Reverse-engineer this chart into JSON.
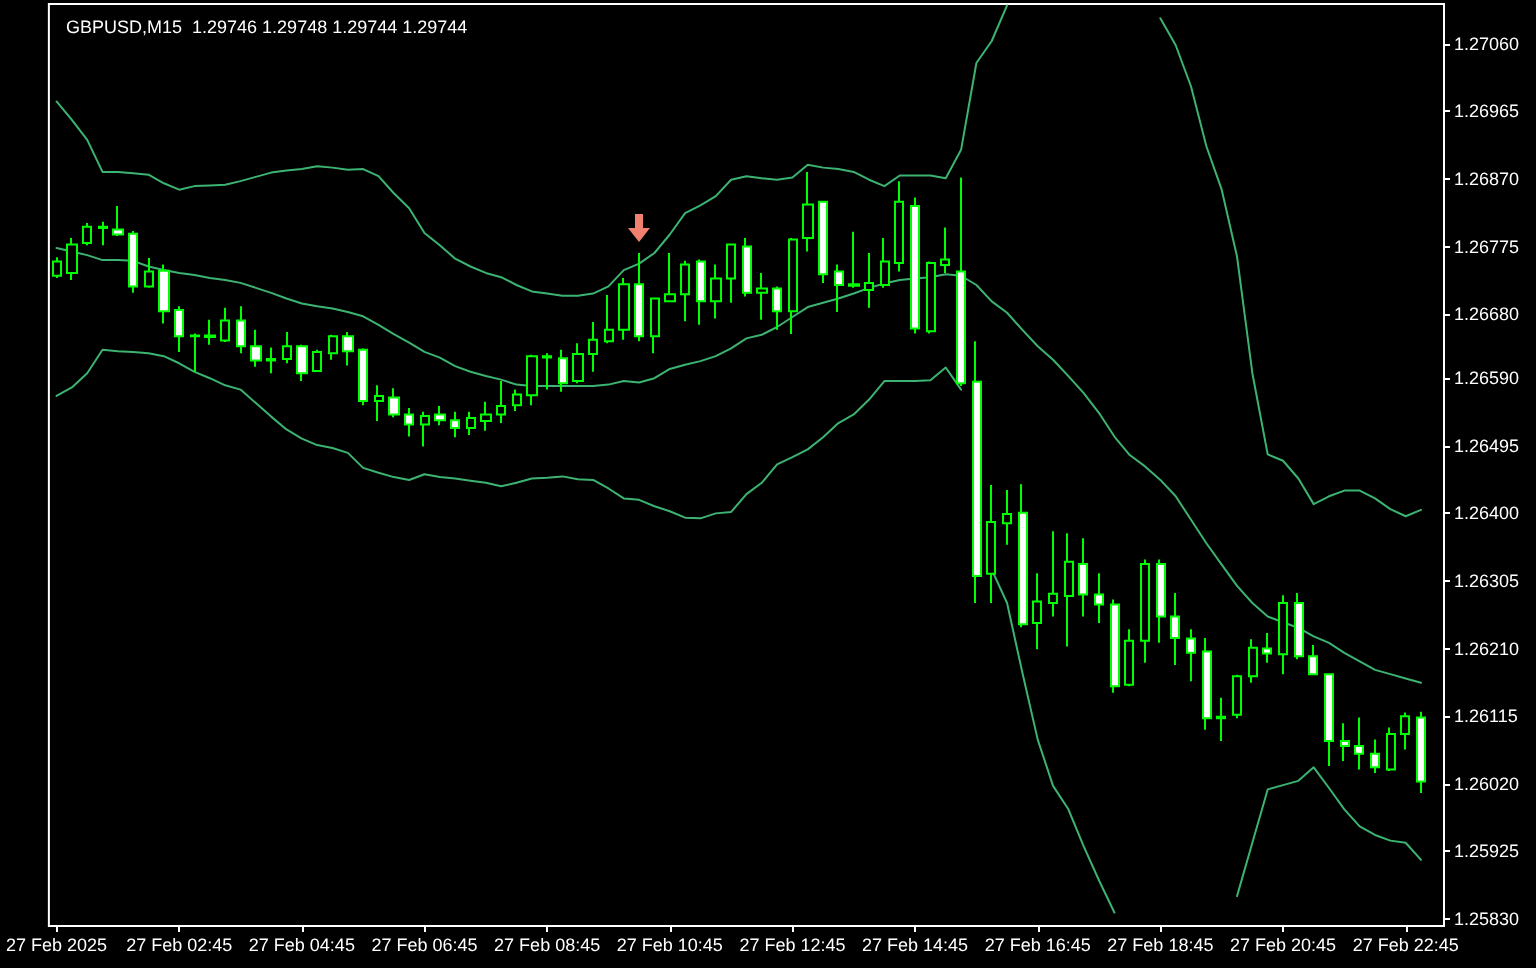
{
  "chart_data": {
    "type": "candlestick",
    "title": "GBPUSD,M15  1.29746 1.29748 1.29744 1.29744",
    "categories": [
      "27 Feb 2025",
      null,
      null,
      null,
      null,
      null,
      null,
      null,
      "27 Feb 02:45",
      null,
      null,
      null,
      null,
      null,
      null,
      null,
      "27 Feb 04:45",
      null,
      null,
      null,
      null,
      null,
      null,
      null,
      "27 Feb 06:45",
      null,
      null,
      null,
      null,
      null,
      null,
      null,
      "27 Feb 08:45",
      null,
      null,
      null,
      null,
      null,
      null,
      null,
      "27 Feb 10:45",
      null,
      null,
      null,
      null,
      null,
      null,
      null,
      "27 Feb 12:45",
      null,
      null,
      null,
      null,
      null,
      null,
      null,
      "27 Feb 14:45",
      null,
      null,
      null,
      null,
      null,
      null,
      null,
      "27 Feb 16:45",
      null,
      null,
      null,
      null,
      null,
      null,
      null,
      "27 Feb 18:45",
      null,
      null,
      null,
      null,
      null,
      null,
      null,
      "27 Feb 20:45",
      null,
      null,
      null,
      null,
      null,
      null,
      null,
      "27 Feb 22:45",
      null
    ],
    "color": "#00ff00",
    "ohlc": [
      [
        1.26734,
        1.2676,
        1.26731,
        1.26754
      ],
      [
        1.26738,
        1.26787,
        1.26728,
        1.26778
      ],
      [
        1.2678,
        1.26808,
        1.26777,
        1.26803
      ],
      [
        1.26801,
        1.2681,
        1.26777,
        1.26803
      ],
      [
        1.26799,
        1.26832,
        1.2679,
        1.26792
      ],
      [
        1.26793,
        1.26797,
        1.2671,
        1.26719
      ],
      [
        1.26719,
        1.26759,
        1.26717,
        1.2674
      ],
      [
        1.26741,
        1.2675,
        1.26667,
        1.26684
      ],
      [
        1.26686,
        1.26691,
        1.26627,
        1.26649
      ],
      [
        1.26649,
        1.26653,
        1.26599,
        1.2665
      ],
      [
        1.2665,
        1.26672,
        1.26637,
        1.26648
      ],
      [
        1.26643,
        1.26689,
        1.26641,
        1.26671
      ],
      [
        1.26671,
        1.26691,
        1.26625,
        1.26635
      ],
      [
        1.26635,
        1.26658,
        1.26606,
        1.26615
      ],
      [
        1.26615,
        1.26633,
        1.26597,
        1.26617
      ],
      [
        1.26617,
        1.26655,
        1.26611,
        1.26635
      ],
      [
        1.26635,
        1.26637,
        1.26586,
        1.26597
      ],
      [
        1.266,
        1.2663,
        1.26599,
        1.26627
      ],
      [
        1.26625,
        1.26651,
        1.26616,
        1.26649
      ],
      [
        1.26649,
        1.26655,
        1.26608,
        1.26628
      ],
      [
        1.2663,
        1.26632,
        1.26552,
        1.26558
      ],
      [
        1.26558,
        1.2658,
        1.2653,
        1.26565
      ],
      [
        1.26563,
        1.26576,
        1.26535,
        1.26539
      ],
      [
        1.26539,
        1.26548,
        1.26508,
        1.26525
      ],
      [
        1.26525,
        1.26543,
        1.26494,
        1.26537
      ],
      [
        1.26539,
        1.26551,
        1.26524,
        1.26531
      ],
      [
        1.26531,
        1.26543,
        1.26507,
        1.2652
      ],
      [
        1.2652,
        1.26543,
        1.2651,
        1.26534
      ],
      [
        1.2653,
        1.26557,
        1.26516,
        1.26539
      ],
      [
        1.26539,
        1.26586,
        1.26527,
        1.26551
      ],
      [
        1.26552,
        1.26574,
        1.26544,
        1.26567
      ],
      [
        1.26566,
        1.26623,
        1.26552,
        1.26621
      ],
      [
        1.26619,
        1.26625,
        1.26574,
        1.26621
      ],
      [
        1.26618,
        1.2663,
        1.26571,
        1.26583
      ],
      [
        1.26586,
        1.26639,
        1.26583,
        1.26624
      ],
      [
        1.26624,
        1.26669,
        1.26599,
        1.26644
      ],
      [
        1.26642,
        1.26707,
        1.26639,
        1.26658
      ],
      [
        1.26658,
        1.26731,
        1.26644,
        1.26722
      ],
      [
        1.26722,
        1.26766,
        1.26642,
        1.26649
      ],
      [
        1.26649,
        1.26703,
        1.26625,
        1.26702
      ],
      [
        1.26698,
        1.26766,
        1.26697,
        1.26708
      ],
      [
        1.26708,
        1.26755,
        1.2667,
        1.2675
      ],
      [
        1.26754,
        1.26757,
        1.26665,
        1.26698
      ],
      [
        1.26698,
        1.2675,
        1.26674,
        1.2673
      ],
      [
        1.2673,
        1.26779,
        1.26696,
        1.26778
      ],
      [
        1.26775,
        1.26787,
        1.26705,
        1.2671
      ],
      [
        1.2671,
        1.26738,
        1.26672,
        1.26716
      ],
      [
        1.26716,
        1.26719,
        1.26658,
        1.26684
      ],
      [
        1.26684,
        1.26787,
        1.26652,
        1.26785
      ],
      [
        1.26787,
        1.2688,
        1.26768,
        1.26834
      ],
      [
        1.26838,
        1.26839,
        1.26724,
        1.26736
      ],
      [
        1.2674,
        1.2675,
        1.26683,
        1.26721
      ],
      [
        1.26722,
        1.26796,
        1.26717,
        1.2672
      ],
      [
        1.26714,
        1.26766,
        1.26689,
        1.26724
      ],
      [
        1.26721,
        1.26787,
        1.26717,
        1.26754
      ],
      [
        1.26752,
        1.26867,
        1.2674,
        1.26838
      ],
      [
        1.26832,
        1.26844,
        1.26653,
        1.2666
      ],
      [
        1.26656,
        1.26754,
        1.26653,
        1.26752
      ],
      [
        1.26749,
        1.26802,
        1.26738,
        1.26757
      ],
      [
        1.2674,
        1.26872,
        1.26579,
        1.26583
      ],
      [
        1.26585,
        1.26642,
        1.26274,
        1.26312
      ],
      [
        1.26315,
        1.2644,
        1.26274,
        1.26388
      ],
      [
        1.26386,
        1.26433,
        1.26356,
        1.26399
      ],
      [
        1.26401,
        1.26441,
        1.2624,
        1.26244
      ],
      [
        1.26246,
        1.26316,
        1.26209,
        1.26276
      ],
      [
        1.26274,
        1.26375,
        1.26255,
        1.26287
      ],
      [
        1.26284,
        1.26372,
        1.26213,
        1.26332
      ],
      [
        1.26329,
        1.26365,
        1.26255,
        1.26286
      ],
      [
        1.26286,
        1.26316,
        1.26246,
        1.26272
      ],
      [
        1.26272,
        1.26279,
        1.26148,
        1.26157
      ],
      [
        1.26159,
        1.26237,
        1.26157,
        1.26221
      ],
      [
        1.26221,
        1.26335,
        1.2619,
        1.26329
      ],
      [
        1.26329,
        1.26335,
        1.26218,
        1.26255
      ],
      [
        1.26255,
        1.26288,
        1.26187,
        1.26225
      ],
      [
        1.26224,
        1.26237,
        1.26164,
        1.26204
      ],
      [
        1.26206,
        1.26225,
        1.26096,
        1.26112
      ],
      [
        1.26112,
        1.26141,
        1.2608,
        1.26114
      ],
      [
        1.26117,
        1.26173,
        1.26112,
        1.26171
      ],
      [
        1.26171,
        1.26223,
        1.26162,
        1.26211
      ],
      [
        1.2621,
        1.26232,
        1.2619,
        1.26203
      ],
      [
        1.26202,
        1.26285,
        1.26174,
        1.26274
      ],
      [
        1.26274,
        1.26288,
        1.26195,
        1.26199
      ],
      [
        1.26199,
        1.26215,
        1.26173,
        1.26174
      ],
      [
        1.26174,
        1.26175,
        1.26045,
        1.2608
      ],
      [
        1.2608,
        1.26105,
        1.26052,
        1.26073
      ],
      [
        1.26073,
        1.26113,
        1.2604,
        1.26062
      ],
      [
        1.26062,
        1.26082,
        1.26035,
        1.26043
      ],
      [
        1.2604,
        1.26099,
        1.26038,
        1.2609
      ],
      [
        1.2609,
        1.2612,
        1.26068,
        1.26115
      ],
      [
        1.26113,
        1.26121,
        1.26007,
        1.26023
      ]
    ],
    "series": [
      {
        "type": "line",
        "color": "#3cb371",
        "values": [
          1.26979,
          1.26953,
          1.26925,
          1.2688,
          1.2688,
          1.26878,
          1.26876,
          1.26864,
          1.26855,
          1.2686,
          1.26861,
          1.26862,
          1.26867,
          1.26873,
          1.26879,
          1.26882,
          1.26884,
          1.26888,
          1.26886,
          1.26883,
          1.26884,
          1.26874,
          1.2685,
          1.26829,
          1.26794,
          1.26777,
          1.26758,
          1.26747,
          1.26738,
          1.26732,
          1.26721,
          1.26712,
          1.26709,
          1.26706,
          1.26706,
          1.26709,
          1.26719,
          1.26742,
          1.26751,
          1.26766,
          1.26792,
          1.26822,
          1.26833,
          1.26846,
          1.26869,
          1.26874,
          1.26871,
          1.26869,
          1.26872,
          1.2689,
          1.26886,
          1.26884,
          1.2688,
          1.26869,
          1.2686,
          1.26875,
          1.26875,
          1.26875,
          1.26871,
          1.26911,
          1.27033,
          1.27064,
          1.27114,
          null,
          null,
          null,
          null,
          null,
          null,
          null,
          null,
          null,
          1.27096,
          1.27058,
          1.27,
          1.26916,
          1.26855,
          1.26761,
          1.26597,
          1.26483,
          1.26474,
          1.26449,
          1.26413,
          1.26424,
          1.26432,
          1.26432,
          1.26421,
          1.26406,
          1.26396,
          1.26405
        ]
      },
      {
        "type": "line",
        "color": "#3cb371",
        "values": [
          1.26773,
          1.26768,
          1.26763,
          1.26756,
          1.26756,
          1.26755,
          1.26747,
          1.26742,
          1.26738,
          1.26735,
          1.26731,
          1.26728,
          1.26724,
          1.26717,
          1.2671,
          1.26702,
          1.26695,
          1.26691,
          1.26688,
          1.26683,
          1.26677,
          1.26665,
          1.26652,
          1.2664,
          1.26627,
          1.26619,
          1.26607,
          1.26599,
          1.26593,
          1.26588,
          1.26581,
          1.26579,
          1.26579,
          1.26579,
          1.26579,
          1.26579,
          1.26581,
          1.26586,
          1.26584,
          1.2659,
          1.26603,
          1.26609,
          1.26614,
          1.26621,
          1.26632,
          1.26646,
          1.26651,
          1.26662,
          1.26676,
          1.2669,
          1.26696,
          1.26702,
          1.26709,
          1.26717,
          1.26723,
          1.26728,
          1.2673,
          1.26732,
          1.26736,
          1.26734,
          1.26721,
          1.26698,
          1.26682,
          1.26658,
          1.26635,
          1.26616,
          1.26593,
          1.26569,
          1.26541,
          1.26508,
          1.26482,
          1.26466,
          1.26447,
          1.26424,
          1.26391,
          1.26358,
          1.26328,
          1.26298,
          1.26274,
          1.26255,
          1.26247,
          1.26239,
          1.26227,
          1.26218,
          1.26204,
          1.26192,
          1.2618,
          1.26174,
          1.26168,
          1.26162
        ]
      },
      {
        "type": "line",
        "color": "#3cb371",
        "values": [
          1.26565,
          1.26577,
          1.26597,
          1.2663,
          1.26628,
          1.26627,
          1.26625,
          1.26621,
          1.26611,
          1.26599,
          1.2659,
          1.2658,
          1.26574,
          1.26555,
          1.26536,
          1.26518,
          1.26505,
          1.26496,
          1.26492,
          1.26485,
          1.26464,
          1.26457,
          1.26451,
          1.26447,
          1.26455,
          1.26451,
          1.26449,
          1.26446,
          1.26443,
          1.26438,
          1.26443,
          1.26449,
          1.2645,
          1.26452,
          1.26448,
          1.26447,
          1.26435,
          1.26421,
          1.26419,
          1.2641,
          1.26403,
          1.26394,
          1.26393,
          1.264,
          1.26402,
          1.26427,
          1.26443,
          1.26469,
          1.26479,
          1.2649,
          1.26507,
          1.26527,
          1.26539,
          1.2656,
          1.26586,
          1.26586,
          1.26586,
          1.26587,
          1.26605,
          1.26574,
          null,
          1.26321,
          1.26274,
          1.26176,
          1.26082,
          1.26017,
          1.25984,
          1.25932,
          1.25884,
          1.25839,
          null,
          null,
          null,
          null,
          null,
          null,
          null,
          1.25862,
          1.25937,
          1.26012,
          1.26018,
          1.26024,
          1.26043,
          1.26014,
          1.25984,
          1.2596,
          1.25948,
          1.2594,
          1.25937,
          1.25913
        ]
      }
    ],
    "ylim": [
      1.2582,
      1.27116
    ],
    "yticks": [
      {
        "value": 1.2706,
        "label": "1.27060"
      },
      1.26965,
      {
        "value": 1.2687,
        "label": "1.26870"
      },
      1.26775,
      {
        "value": 1.2668,
        "label": "1.26680"
      },
      {
        "value": 1.2659,
        "label": "1.26590"
      },
      1.26495,
      {
        "value": 1.264,
        "label": "1.26400"
      },
      1.26305,
      {
        "value": 1.2621,
        "label": "1.26210"
      },
      1.26115,
      {
        "value": 1.2602,
        "label": "1.26020"
      },
      1.25925,
      {
        "value": 1.2583,
        "label": "1.25830"
      }
    ]
  }
}
